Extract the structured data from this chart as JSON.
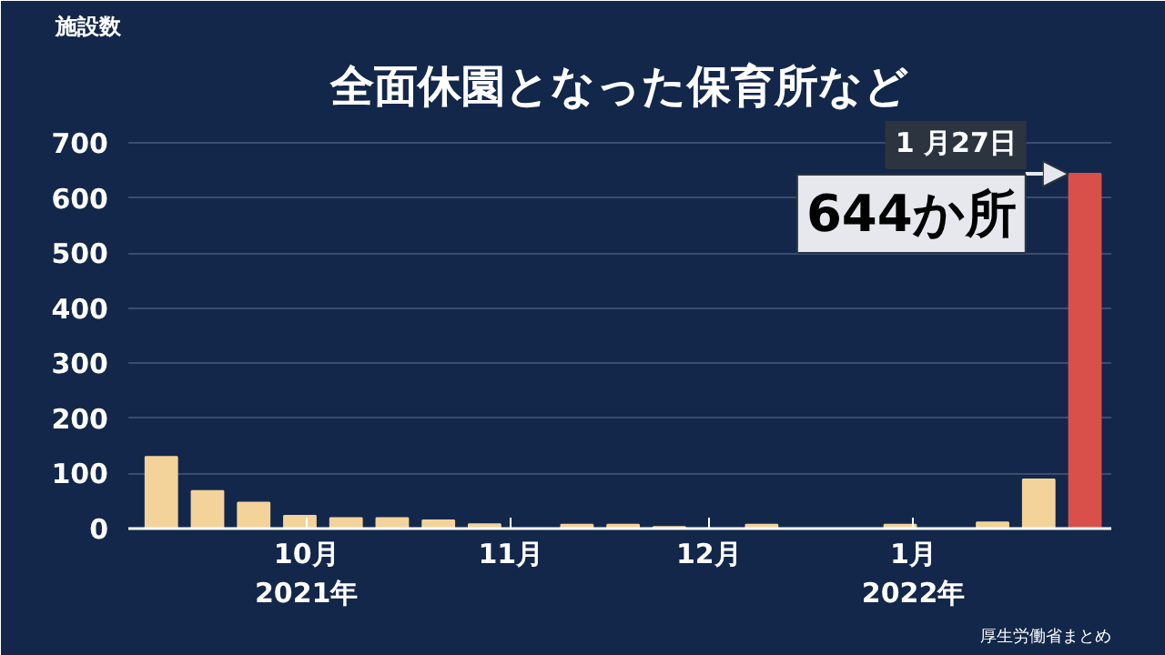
{
  "chart_data": {
    "type": "bar",
    "title": "全面休園となった保育所など",
    "ylabel": "施設数",
    "x": [
      "2021-09-09",
      "2021-09-16",
      "2021-09-23",
      "2021-09-30",
      "2021-10-07",
      "2021-10-14",
      "2021-10-21",
      "2021-10-28",
      "2021-11-04",
      "2021-11-11",
      "2021-11-18",
      "2021-11-25",
      "2021-12-02",
      "2021-12-09",
      "2021-12-16",
      "2021-12-23",
      "2021-12-30",
      "2022-01-06",
      "2022-01-13",
      "2022-01-20",
      "2022-01-27"
    ],
    "values": [
      130,
      68,
      47,
      23,
      19,
      19,
      15,
      8,
      0,
      7,
      7,
      3,
      0,
      7,
      0,
      0,
      7,
      0,
      11,
      89,
      644
    ],
    "colors": [
      "#f3d39a",
      "#f3d39a",
      "#f3d39a",
      "#f3d39a",
      "#f3d39a",
      "#f3d39a",
      "#f3d39a",
      "#f3d39a",
      "#f3d39a",
      "#f3d39a",
      "#f3d39a",
      "#f3d39a",
      "#f3d39a",
      "#f3d39a",
      "#f3d39a",
      "#f3d39a",
      "#f3d39a",
      "#f3d39a",
      "#f3d39a",
      "#f3d39a",
      "#d9504a"
    ],
    "xlim": [
      "2021-09-04",
      "2022-01-31"
    ],
    "xticks": [
      {
        "value": "2021-10-01",
        "label": "10月\n2021年"
      },
      {
        "value": "2021-11-01",
        "label": "11月"
      },
      {
        "value": "2021-12-01",
        "label": "12月"
      },
      {
        "value": "2022-01-01",
        "label": "1月\n2022年"
      }
    ],
    "ylim": [
      0,
      740
    ],
    "yticks": [
      0,
      100,
      200,
      300,
      400,
      500,
      600,
      700
    ],
    "grid": "y",
    "annotations": [
      "1 月27日",
      {
        "text": "644か所",
        "x": "2022-01-27",
        "y": 644
      },
      "厚生労働省まとめ"
    ]
  }
}
